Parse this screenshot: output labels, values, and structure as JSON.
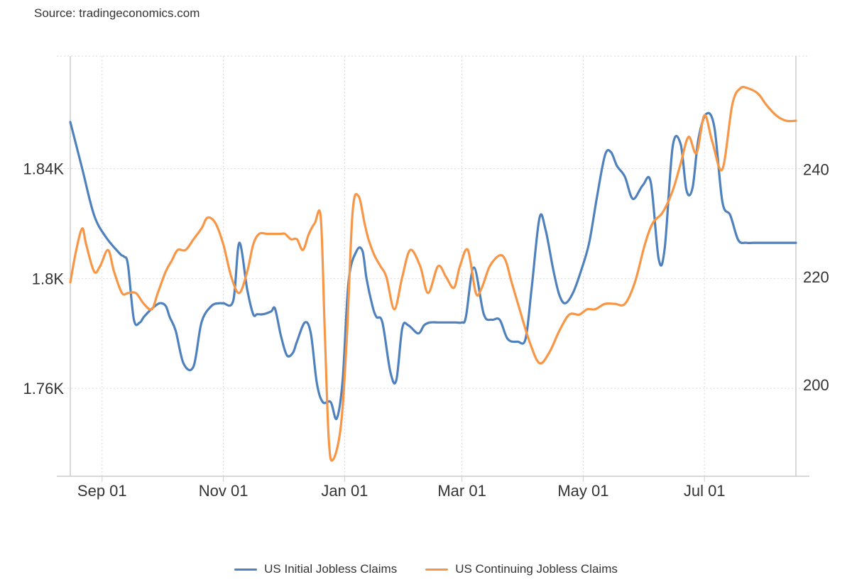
{
  "source": "Source: tradingeconomics.com",
  "chart_data": {
    "type": "line",
    "title": "",
    "x_tick_labels": [
      "Sep 01",
      "Nov 01",
      "Jan 01",
      "Mar 01",
      "May 01",
      "Jul 01"
    ],
    "x_tick_days": [
      16,
      77,
      138,
      197,
      258,
      319
    ],
    "x_range_days": [
      0,
      365
    ],
    "y_left": {
      "ticks": [
        1760,
        1800,
        1840
      ],
      "tick_labels": [
        "1.76K",
        "1.8K",
        "1.84K"
      ],
      "range": [
        1728,
        1881
      ]
    },
    "y_right": {
      "ticks": [
        200,
        220,
        240
      ],
      "tick_labels": [
        "200",
        "220",
        "240"
      ],
      "range": [
        183,
        261
      ]
    },
    "grid": true,
    "legend_position": "bottom-center",
    "series": [
      {
        "name": "US Initial Jobless Claims",
        "axis": "left",
        "color": "#4f81bd",
        "x_days": [
          0,
          6,
          12,
          18,
          25,
          27,
          29,
          32,
          35,
          37,
          41,
          45,
          48,
          50,
          53,
          57,
          62,
          66,
          71,
          75,
          77,
          82,
          85,
          89,
          92,
          94,
          97,
          101,
          103,
          106,
          109,
          112,
          114,
          118,
          121,
          124,
          127,
          131,
          134,
          137,
          140,
          144,
          147,
          149,
          152,
          154,
          157,
          161,
          164,
          167,
          170,
          175,
          178,
          181,
          185,
          190,
          194,
          197,
          199,
          203,
          208,
          212,
          216,
          220,
          225,
          229,
          232,
          236,
          239,
          243,
          246,
          249,
          253,
          257,
          261,
          265,
          269,
          272,
          275,
          279,
          283,
          288,
          292,
          296,
          299,
          303,
          307,
          310,
          313,
          316,
          320,
          324,
          328,
          332,
          336,
          340,
          344,
          348,
          352,
          358,
          365
        ],
        "values": [
          1857,
          1840,
          1823,
          1815,
          1809,
          1808,
          1805,
          1785,
          1784,
          1786,
          1789,
          1791,
          1790,
          1786,
          1781,
          1769,
          1768,
          1784,
          1790,
          1791,
          1791,
          1792,
          1813,
          1796,
          1787,
          1787,
          1787,
          1788,
          1789,
          1779,
          1772,
          1773,
          1777,
          1784,
          1780,
          1762,
          1755,
          1755,
          1749,
          1763,
          1799,
          1810,
          1810,
          1800,
          1790,
          1786,
          1784,
          1766,
          1763,
          1782,
          1783,
          1780,
          1783,
          1784,
          1784,
          1784,
          1784,
          1784,
          1786,
          1804,
          1787,
          1785,
          1785,
          1778,
          1777,
          1778,
          1796,
          1822,
          1818,
          1803,
          1794,
          1791,
          1795,
          1803,
          1813,
          1830,
          1845,
          1846,
          1841,
          1837,
          1829,
          1834,
          1835,
          1807,
          1811,
          1848,
          1849,
          1832,
          1833,
          1851,
          1860,
          1855,
          1828,
          1823,
          1814,
          1813,
          1813,
          1813,
          1813,
          1813,
          1813
        ]
      },
      {
        "name": "US Continuing Jobless Claims",
        "axis": "right",
        "color": "#f79646",
        "x_days": [
          0,
          3,
          6,
          8,
          12,
          15,
          19,
          22,
          26,
          29,
          33,
          37,
          41,
          44,
          48,
          51,
          54,
          58,
          62,
          66,
          69,
          73,
          77,
          81,
          85,
          89,
          92,
          95,
          99,
          103,
          106,
          108,
          111,
          114,
          117,
          120,
          123,
          126,
          128,
          130,
          132,
          136,
          139,
          142,
          145,
          148,
          150,
          153,
          156,
          159,
          163,
          167,
          171,
          176,
          180,
          185,
          189,
          193,
          196,
          200,
          204,
          207,
          211,
          216,
          219,
          222,
          226,
          231,
          236,
          241,
          246,
          251,
          256,
          260,
          264,
          269,
          274,
          279,
          284,
          289,
          293,
          298,
          303,
          307,
          311,
          315,
          319,
          323,
          328,
          333,
          337,
          341,
          346,
          350,
          355,
          360,
          365
        ],
        "values": [
          219,
          225,
          229,
          226,
          221,
          222,
          225,
          221,
          217,
          217,
          217,
          215,
          214,
          217,
          221,
          223,
          225,
          225,
          227,
          229,
          231,
          230,
          226,
          220,
          217,
          221,
          226,
          228,
          228,
          228,
          228,
          228,
          227,
          227,
          225,
          228,
          230,
          231,
          210,
          190,
          186,
          192,
          208,
          232,
          235,
          230,
          227,
          224,
          222,
          220,
          214,
          220,
          225,
          222,
          217,
          222,
          220,
          218,
          222,
          225,
          217,
          218,
          222,
          224,
          223,
          219,
          214,
          208,
          204,
          206,
          210,
          213,
          213,
          214,
          214,
          215,
          215,
          215,
          219,
          226,
          230,
          232,
          236,
          241,
          246,
          243,
          250,
          245,
          240,
          252,
          255,
          255,
          254,
          252,
          250,
          249,
          249
        ]
      }
    ]
  }
}
